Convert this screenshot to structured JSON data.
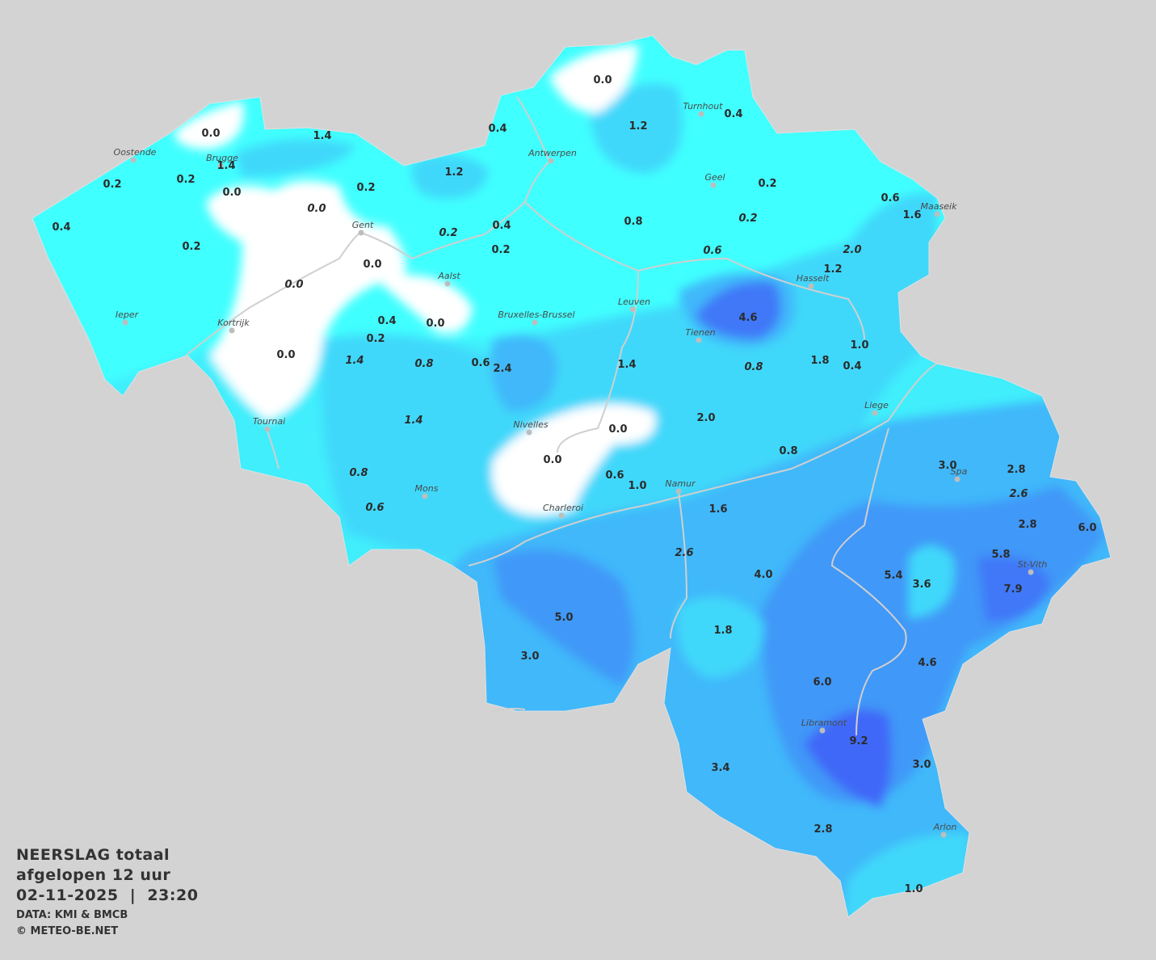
{
  "title": {
    "line1": "NEERSLAG totaal",
    "line2": "afgelopen 12 uur",
    "datetime": "02-11-2025  |  23:20",
    "source": "DATA: KMI & BMCB",
    "copyright": "© METEO-BE.NET"
  },
  "colors": {
    "background": "#d3d3d3",
    "zero": "#ffffff",
    "light": "#40ffff",
    "cyan": "#40eefc",
    "light_blue": "#40d8fa",
    "blue": "#40b8fa",
    "medium_blue": "#4098f8",
    "dark_blue": "#4068f8",
    "rivers": "#cccccc"
  },
  "cities": [
    {
      "name": "Oostende"
    },
    {
      "name": "Brugge"
    },
    {
      "name": "Antwerpen"
    },
    {
      "name": "Turnhout"
    },
    {
      "name": "Geel"
    },
    {
      "name": "Maaseik"
    },
    {
      "name": "Gent"
    },
    {
      "name": "Aalst"
    },
    {
      "name": "Hasselt"
    },
    {
      "name": "Leuven"
    },
    {
      "name": "Bruxelles-Brussel"
    },
    {
      "name": "Ieper"
    },
    {
      "name": "Kortrijk"
    },
    {
      "name": "Tienen"
    },
    {
      "name": "Liege"
    },
    {
      "name": "Tournai"
    },
    {
      "name": "Nivelles"
    },
    {
      "name": "Mons"
    },
    {
      "name": "Namur"
    },
    {
      "name": "Charleroi"
    },
    {
      "name": "Spa"
    },
    {
      "name": "St-Vith"
    },
    {
      "name": "Libramont"
    },
    {
      "name": "Arlon"
    }
  ],
  "values": [
    {
      "v": "0.0",
      "it": false
    },
    {
      "v": "0.0",
      "it": false
    },
    {
      "v": "1.4",
      "it": false
    },
    {
      "v": "1.4",
      "it": false
    },
    {
      "v": "0.4",
      "it": false
    },
    {
      "v": "1.2",
      "it": false
    },
    {
      "v": "0.4",
      "it": false
    },
    {
      "v": "0.2",
      "it": false
    },
    {
      "v": "0.2",
      "it": false
    },
    {
      "v": "0.0",
      "it": false
    },
    {
      "v": "0.0",
      "it": true
    },
    {
      "v": "0.2",
      "it": false
    },
    {
      "v": "1.2",
      "it": false
    },
    {
      "v": "0.2",
      "it": false
    },
    {
      "v": "0.4",
      "it": false
    },
    {
      "v": "0.2",
      "it": false
    },
    {
      "v": "0.2",
      "it": true
    },
    {
      "v": "0.2",
      "it": true
    },
    {
      "v": "0.4",
      "it": false
    },
    {
      "v": "0.2",
      "it": false
    },
    {
      "v": "0.8",
      "it": false
    },
    {
      "v": "0.6",
      "it": true
    },
    {
      "v": "1.6",
      "it": false
    },
    {
      "v": "2.0",
      "it": true
    },
    {
      "v": "0.0",
      "it": false
    },
    {
      "v": "0.0",
      "it": true
    },
    {
      "v": "0.6",
      "it": false
    },
    {
      "v": "1.2",
      "it": false
    },
    {
      "v": "0.4",
      "it": false
    },
    {
      "v": "0.2",
      "it": false
    },
    {
      "v": "0.0",
      "it": false
    },
    {
      "v": "4.6",
      "it": false
    },
    {
      "v": "0.0",
      "it": false
    },
    {
      "v": "1.4",
      "it": true
    },
    {
      "v": "0.8",
      "it": true
    },
    {
      "v": "0.6",
      "it": false
    },
    {
      "v": "2.4",
      "it": false
    },
    {
      "v": "1.4",
      "it": false
    },
    {
      "v": "0.8",
      "it": true
    },
    {
      "v": "1.8",
      "it": false
    },
    {
      "v": "1.0",
      "it": false
    },
    {
      "v": "0.4",
      "it": false
    },
    {
      "v": "1.4",
      "it": true
    },
    {
      "v": "0.0",
      "it": false
    },
    {
      "v": "2.0",
      "it": false
    },
    {
      "v": "0.0",
      "it": false
    },
    {
      "v": "0.8",
      "it": false
    },
    {
      "v": "0.8",
      "it": true
    },
    {
      "v": "0.6",
      "it": false
    },
    {
      "v": "1.0",
      "it": false
    },
    {
      "v": "3.0",
      "it": false
    },
    {
      "v": "2.8",
      "it": false
    },
    {
      "v": "2.6",
      "it": true
    },
    {
      "v": "0.6",
      "it": true
    },
    {
      "v": "1.6",
      "it": false
    },
    {
      "v": "2.8",
      "it": false
    },
    {
      "v": "6.0",
      "it": false
    },
    {
      "v": "2.6",
      "it": true
    },
    {
      "v": "5.8",
      "it": false
    },
    {
      "v": "4.0",
      "it": false
    },
    {
      "v": "5.4",
      "it": false
    },
    {
      "v": "3.6",
      "it": false
    },
    {
      "v": "7.9",
      "it": false
    },
    {
      "v": "5.0",
      "it": false
    },
    {
      "v": "1.8",
      "it": false
    },
    {
      "v": "3.0",
      "it": false
    },
    {
      "v": "4.6",
      "it": false
    },
    {
      "v": "6.0",
      "it": false
    },
    {
      "v": "9.2",
      "it": false
    },
    {
      "v": "3.4",
      "it": false
    },
    {
      "v": "3.0",
      "it": false
    },
    {
      "v": "2.8",
      "it": false
    },
    {
      "v": "1.0",
      "it": false
    },
    {
      "v": "0.2",
      "it": false
    }
  ]
}
